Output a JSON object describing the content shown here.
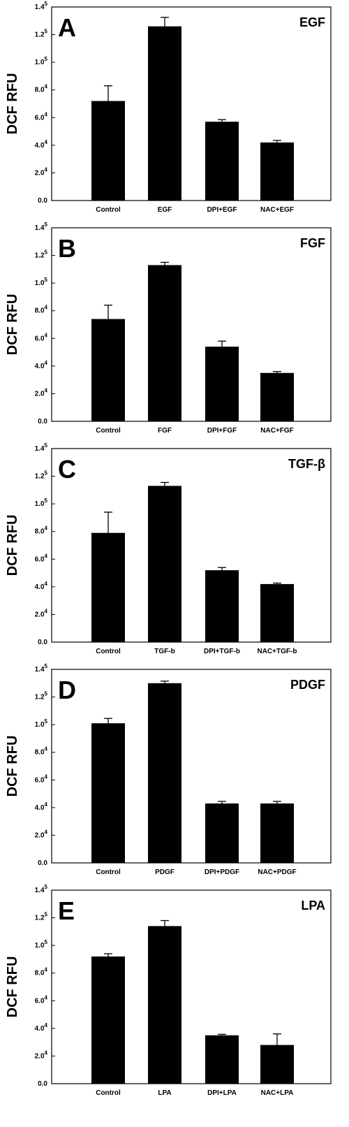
{
  "chart_data": [
    {
      "type": "bar",
      "panel": "A",
      "title": "EGF",
      "ylabel": "DCF RFU",
      "ylim": [
        0,
        140000
      ],
      "yticks": [
        {
          "base": "0.0",
          "exp": ""
        },
        {
          "base": "2.0",
          "exp": "4"
        },
        {
          "base": "4.0",
          "exp": "4"
        },
        {
          "base": "6.0",
          "exp": "4"
        },
        {
          "base": "8.0",
          "exp": "4"
        },
        {
          "base": "1.0",
          "exp": "5"
        },
        {
          "base": "1.2",
          "exp": "5"
        },
        {
          "base": "1.4",
          "exp": "5"
        }
      ],
      "categories": [
        "Control",
        "EGF",
        "DPI+EGF",
        "NAC+EGF"
      ],
      "values": [
        72000,
        126000,
        57000,
        42000
      ],
      "errors": [
        11000,
        6500,
        1500,
        1500
      ],
      "bar_color": "#000000"
    },
    {
      "type": "bar",
      "panel": "B",
      "title": "FGF",
      "ylabel": "DCF RFU",
      "ylim": [
        0,
        140000
      ],
      "yticks": [
        {
          "base": "0.0",
          "exp": ""
        },
        {
          "base": "2.0",
          "exp": "4"
        },
        {
          "base": "4.0",
          "exp": "4"
        },
        {
          "base": "6.0",
          "exp": "4"
        },
        {
          "base": "8.0",
          "exp": "4"
        },
        {
          "base": "1.0",
          "exp": "5"
        },
        {
          "base": "1.2",
          "exp": "5"
        },
        {
          "base": "1.4",
          "exp": "5"
        }
      ],
      "categories": [
        "Control",
        "FGF",
        "DPI+FGF",
        "NAC+FGF"
      ],
      "values": [
        74000,
        113000,
        54000,
        35000
      ],
      "errors": [
        10000,
        2000,
        4000,
        1000
      ],
      "bar_color": "#000000"
    },
    {
      "type": "bar",
      "panel": "C",
      "title": "TGF-β",
      "ylabel": "DCF RFU",
      "ylim": [
        0,
        140000
      ],
      "yticks": [
        {
          "base": "0.0",
          "exp": ""
        },
        {
          "base": "2.0",
          "exp": "4"
        },
        {
          "base": "4.0",
          "exp": "4"
        },
        {
          "base": "6.0",
          "exp": "4"
        },
        {
          "base": "8.0",
          "exp": "4"
        },
        {
          "base": "1.0",
          "exp": "5"
        },
        {
          "base": "1.2",
          "exp": "5"
        },
        {
          "base": "1.4",
          "exp": "5"
        }
      ],
      "categories": [
        "Control",
        "TGF-b",
        "DPI+TGF-b",
        "NAC+TGF-b"
      ],
      "values": [
        79000,
        113000,
        52000,
        42000
      ],
      "errors": [
        15000,
        2500,
        2000,
        700
      ],
      "bar_color": "#000000"
    },
    {
      "type": "bar",
      "panel": "D",
      "title": "PDGF",
      "ylabel": "DCF RFU",
      "ylim": [
        0,
        140000
      ],
      "yticks": [
        {
          "base": "0.0",
          "exp": ""
        },
        {
          "base": "2.0",
          "exp": "4"
        },
        {
          "base": "4.0",
          "exp": "4"
        },
        {
          "base": "6.0",
          "exp": "4"
        },
        {
          "base": "8.0",
          "exp": "4"
        },
        {
          "base": "1.0",
          "exp": "5"
        },
        {
          "base": "1.2",
          "exp": "5"
        },
        {
          "base": "1.4",
          "exp": "5"
        }
      ],
      "categories": [
        "Control",
        "PDGF",
        "DPI+PDGF",
        "NAC+PDGF"
      ],
      "values": [
        101000,
        130000,
        43000,
        43000
      ],
      "errors": [
        3500,
        1500,
        1500,
        1500
      ],
      "bar_color": "#000000"
    },
    {
      "type": "bar",
      "panel": "E",
      "title": "LPA",
      "ylabel": "DCF RFU",
      "ylim": [
        0,
        140000
      ],
      "yticks": [
        {
          "base": "0.0",
          "exp": ""
        },
        {
          "base": "2.0",
          "exp": "4"
        },
        {
          "base": "4.0",
          "exp": "4"
        },
        {
          "base": "6.0",
          "exp": "4"
        },
        {
          "base": "8.0",
          "exp": "4"
        },
        {
          "base": "1.0",
          "exp": "5"
        },
        {
          "base": "1.2",
          "exp": "5"
        },
        {
          "base": "1.4",
          "exp": "5"
        }
      ],
      "categories": [
        "Control",
        "LPA",
        "DPI+LPA",
        "NAC+LPA"
      ],
      "values": [
        92000,
        114000,
        35000,
        28000
      ],
      "errors": [
        2000,
        4000,
        700,
        8000
      ],
      "bar_color": "#000000"
    }
  ]
}
